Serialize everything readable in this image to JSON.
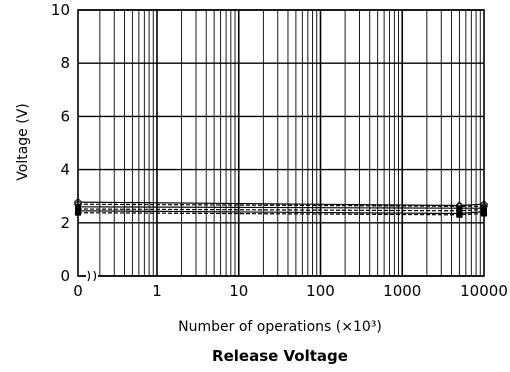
{
  "chart_data": {
    "type": "line",
    "title": "Release Voltage",
    "xlabel": "Number of operations (×10³)",
    "ylabel": "Voltage (V)",
    "x_scale": "log",
    "x_axis_break": true,
    "x_ticks": [
      0,
      1,
      10,
      100,
      1000,
      10000
    ],
    "x_tick_labels": [
      "0",
      "1",
      "10",
      "100",
      "1000",
      "10000"
    ],
    "y_ticks": [
      0,
      2,
      4,
      6,
      8,
      10
    ],
    "ylim": [
      0,
      10
    ],
    "grid": true,
    "x": [
      0,
      5000,
      10000
    ],
    "series": [
      {
        "style": "solid",
        "marker": "diamond-open",
        "values": [
          2.78,
          2.65,
          2.7
        ]
      },
      {
        "style": "dashed",
        "marker": "diamond-open",
        "values": [
          2.7,
          2.62,
          2.62
        ]
      },
      {
        "style": "solid",
        "marker": "square",
        "values": [
          2.6,
          2.55,
          2.55
        ]
      },
      {
        "style": "dashed",
        "marker": "square",
        "values": [
          2.52,
          2.45,
          2.5
        ]
      },
      {
        "style": "solid",
        "marker": "triangle",
        "values": [
          2.45,
          2.35,
          2.42
        ]
      },
      {
        "style": "dashed",
        "marker": "square",
        "values": [
          2.38,
          2.3,
          2.35
        ]
      }
    ]
  }
}
